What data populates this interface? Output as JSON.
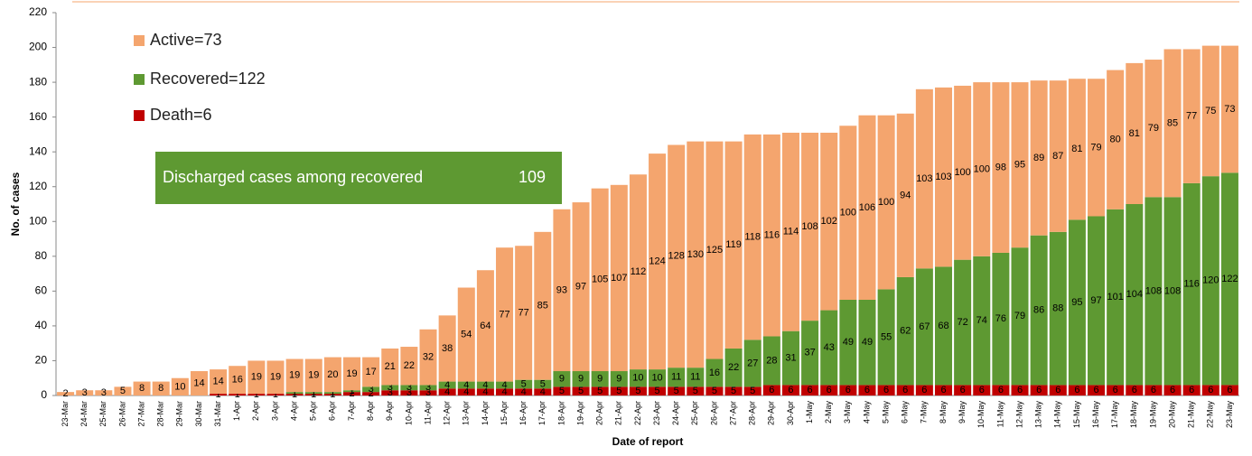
{
  "chart_data": {
    "type": "stacked_bar",
    "y_label": "No. of cases",
    "x_label": "Date of report",
    "annotation": {
      "text": "Discharged cases among recovered",
      "value": 109
    },
    "categories": [
      "23-Mar",
      "24-Mar",
      "25-Mar",
      "26-Mar",
      "27-Mar",
      "28-Mar",
      "29-Mar",
      "30-Mar",
      "31-Mar",
      "1-Apr",
      "2-Apr",
      "3-Apr",
      "4-Apr",
      "5-Apr",
      "6-Apr",
      "7-Apr",
      "8-Apr",
      "9-Apr",
      "10-Apr",
      "11-Apr",
      "12-Apr",
      "13-Apr",
      "14-Apr",
      "15-Apr",
      "16-Apr",
      "17-Apr",
      "18-Apr",
      "19-Apr",
      "20-Apr",
      "21-Apr",
      "22-Apr",
      "23-Apr",
      "24-Apr",
      "25-Apr",
      "26-Apr",
      "27-Apr",
      "28-Apr",
      "29-Apr",
      "30-Apr",
      "1-May",
      "2-May",
      "3-May",
      "4-May",
      "5-May",
      "6-May",
      "7-May",
      "8-May",
      "9-May",
      "10-May",
      "11-May",
      "12-May",
      "13-May",
      "14-May",
      "15-May",
      "16-May",
      "17-May",
      "18-May",
      "19-May",
      "20-May",
      "21-May",
      "22-May",
      "23-May"
    ],
    "series": [
      {
        "name": "Death=6",
        "color": "#c00000",
        "values": [
          null,
          null,
          null,
          null,
          null,
          null,
          null,
          null,
          1,
          1,
          1,
          1,
          1,
          1,
          1,
          2,
          2,
          3,
          3,
          3,
          4,
          4,
          4,
          4,
          4,
          4,
          5,
          5,
          5,
          5,
          5,
          5,
          5,
          5,
          5,
          5,
          5,
          6,
          6,
          6,
          6,
          6,
          6,
          6,
          6,
          6,
          6,
          6,
          6,
          6,
          6,
          6,
          6,
          6,
          6,
          6,
          6,
          6,
          6,
          6,
          6,
          6
        ]
      },
      {
        "name": "Recovered=122",
        "color": "#5e9932",
        "values": [
          null,
          null,
          null,
          null,
          null,
          null,
          null,
          null,
          null,
          null,
          null,
          null,
          1,
          1,
          1,
          1,
          3,
          3,
          3,
          3,
          4,
          4,
          4,
          4,
          5,
          5,
          9,
          9,
          9,
          9,
          10,
          10,
          11,
          11,
          16,
          22,
          27,
          28,
          31,
          37,
          43,
          49,
          49,
          55,
          62,
          67,
          68,
          72,
          74,
          76,
          79,
          86,
          88,
          95,
          97,
          101,
          104,
          108,
          108,
          116,
          120,
          122
        ]
      },
      {
        "name": "Active=73",
        "color": "#f4a56e",
        "values": [
          2,
          3,
          3,
          5,
          8,
          8,
          10,
          14,
          14,
          16,
          19,
          19,
          19,
          19,
          20,
          19,
          17,
          21,
          22,
          32,
          38,
          54,
          64,
          77,
          77,
          85,
          93,
          97,
          105,
          107,
          112,
          124,
          128,
          130,
          125,
          119,
          118,
          116,
          114,
          108,
          102,
          100,
          106,
          100,
          94,
          103,
          103,
          100,
          100,
          98,
          95,
          89,
          87,
          81,
          79,
          80,
          81,
          79,
          85,
          77,
          75,
          73
        ]
      }
    ],
    "ylim": [
      0,
      220
    ],
    "yticks": [
      0,
      20,
      40,
      60,
      80,
      100,
      120,
      140,
      160,
      180,
      200,
      220
    ]
  }
}
